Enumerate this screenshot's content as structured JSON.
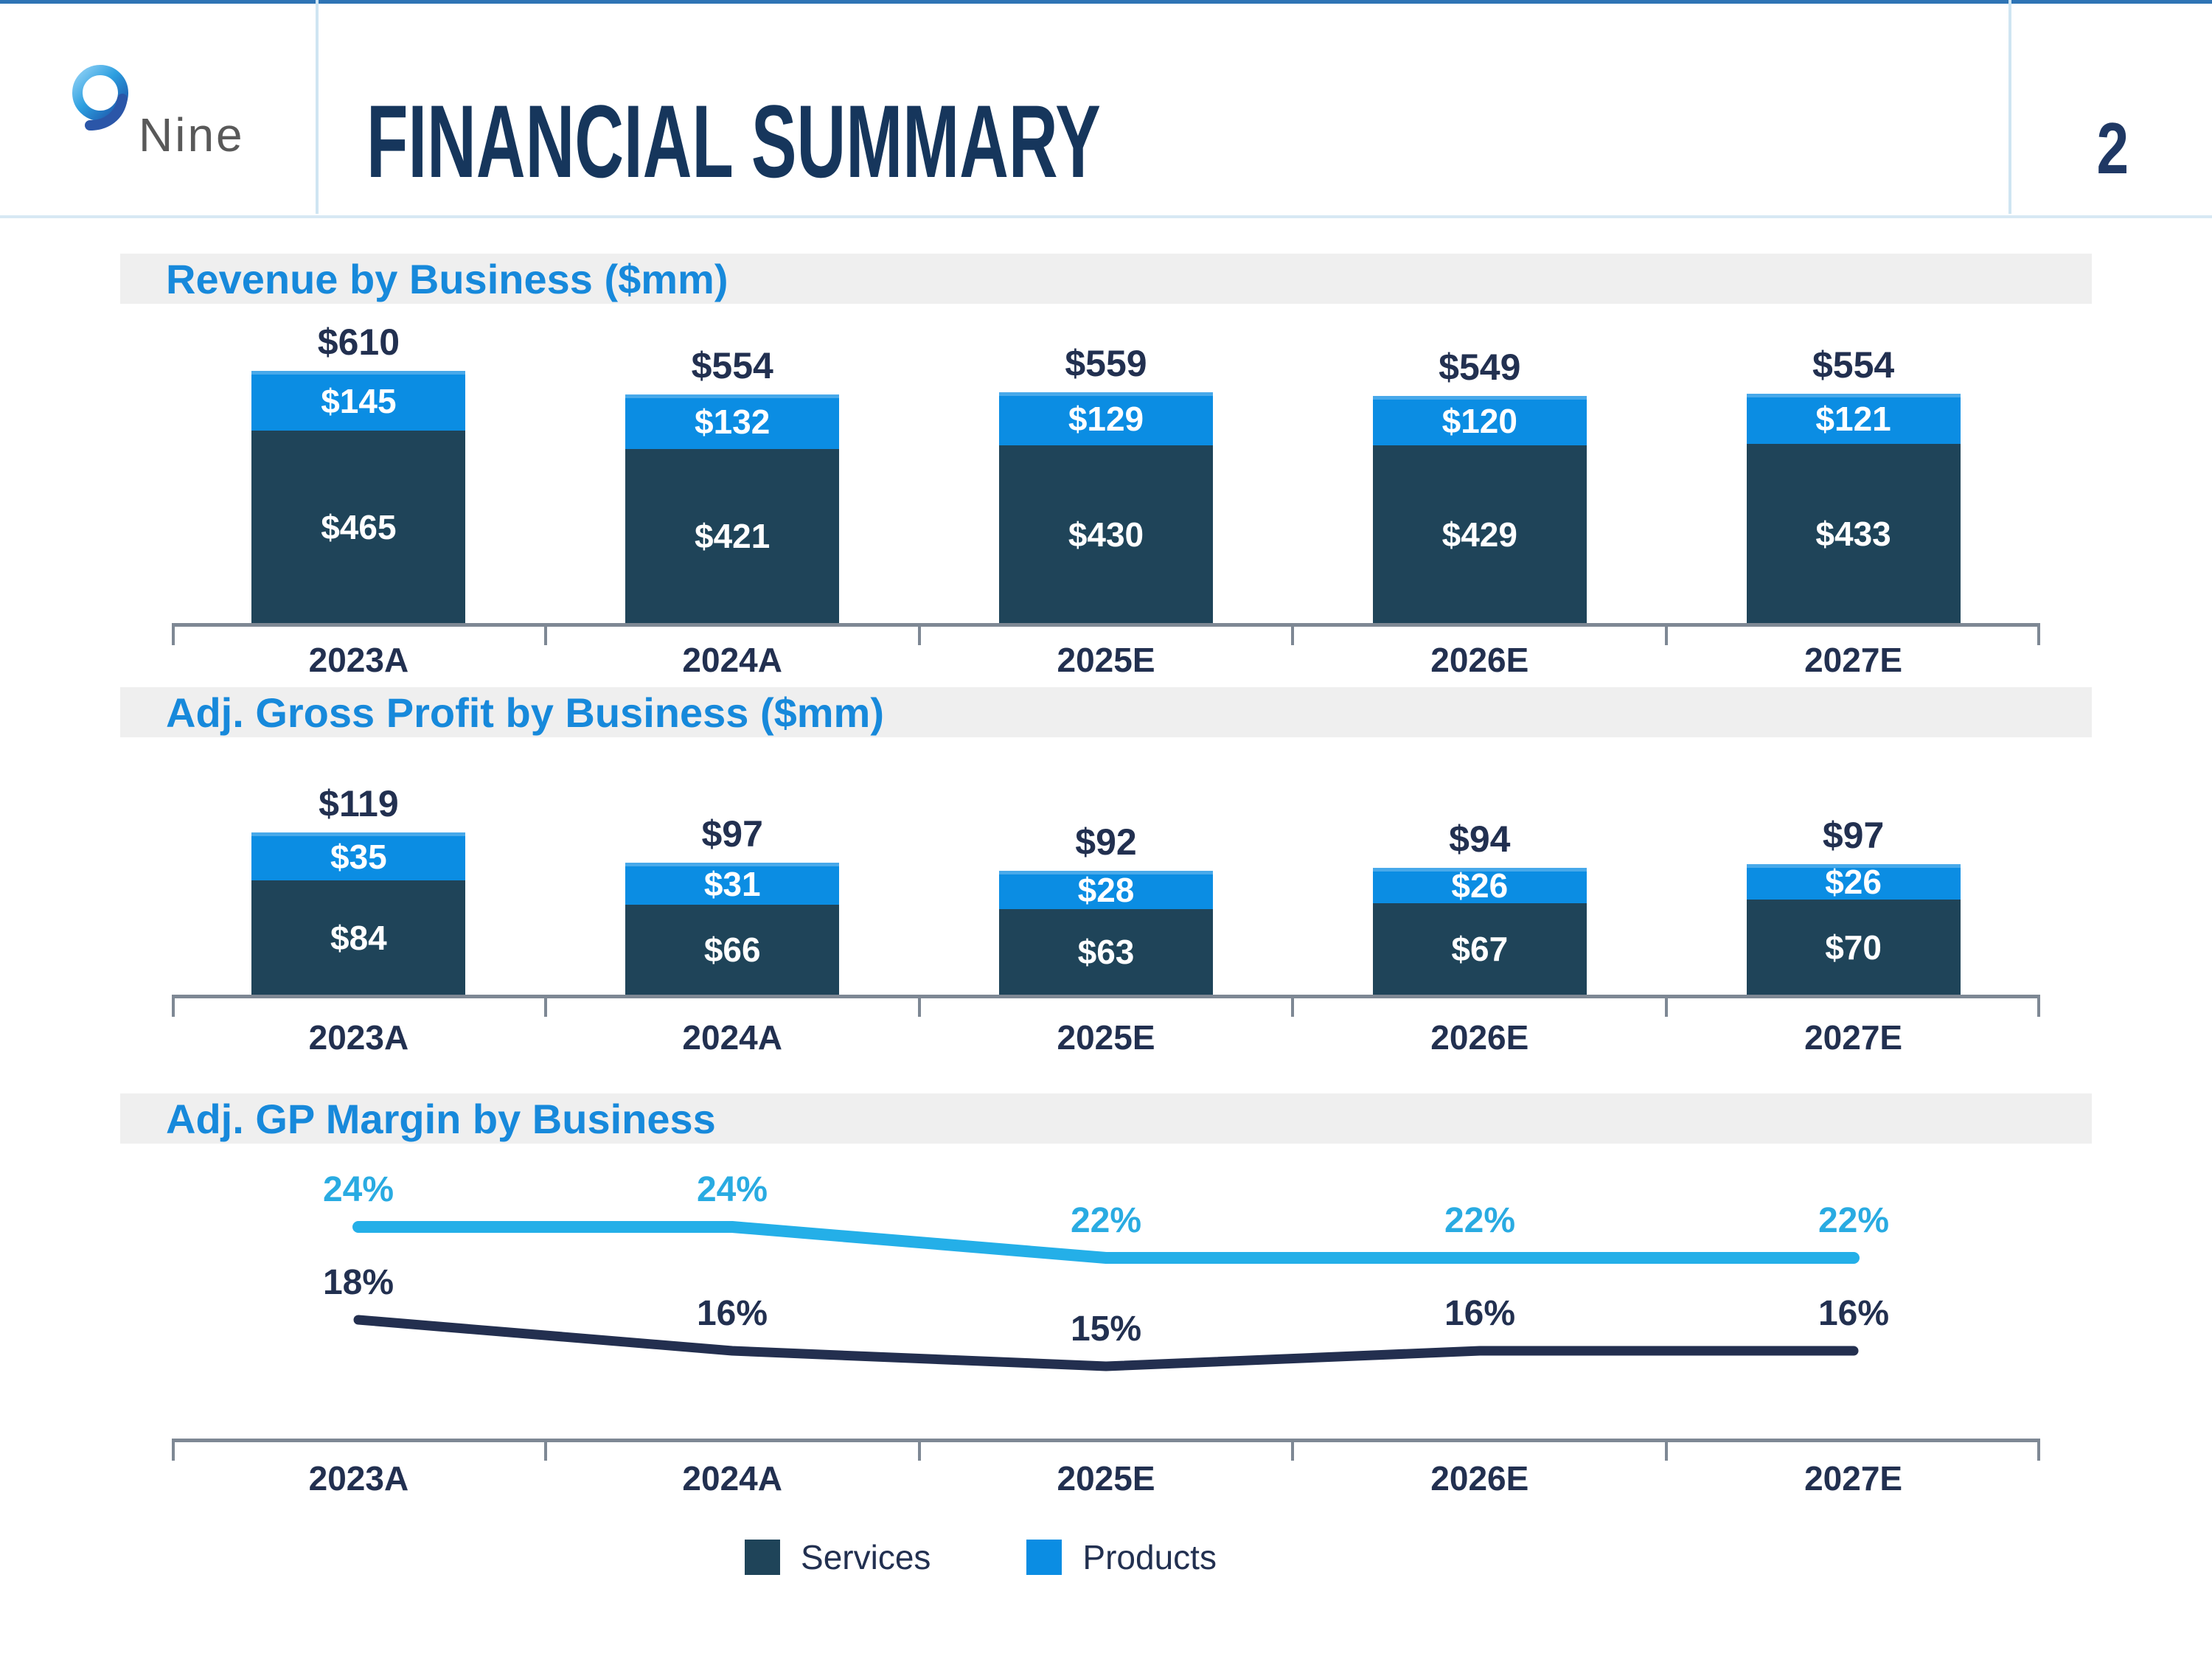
{
  "header": {
    "logo_text": "Nine",
    "title": "FINANCIAL SUMMARY",
    "page_number": "2"
  },
  "colors": {
    "accent_blue": "#1789DB",
    "products_bar": "#0B8DE3",
    "services_bar": "#1F4459",
    "line_products": "#24AFE8",
    "line_products_label": "#29ABE2",
    "line_services": "#232F4F",
    "line_services_label": "#223050",
    "navy_text": "#223050",
    "banner_bg": "#EFEFEF",
    "axis_gray": "#7E8894",
    "header_rule": "#D7E8F4",
    "top_border": "#2E74B5"
  },
  "legend": {
    "items": [
      {
        "label": "Services",
        "color_key": "services_bar"
      },
      {
        "label": "Products",
        "color_key": "products_bar"
      }
    ]
  },
  "chart_data": [
    {
      "type": "bar",
      "title": "Revenue by Business ($mm)",
      "categories": [
        "2023A",
        "2024A",
        "2025E",
        "2026E",
        "2027E"
      ],
      "series": [
        {
          "name": "Services",
          "values": [
            465,
            421,
            430,
            429,
            433
          ]
        },
        {
          "name": "Products",
          "values": [
            145,
            132,
            129,
            120,
            121
          ]
        }
      ],
      "totals": [
        610,
        554,
        559,
        549,
        554
      ],
      "value_prefix": "$",
      "stacked": true,
      "legend_position": "shared-bottom"
    },
    {
      "type": "bar",
      "title": "Adj. Gross Profit by Business ($mm)",
      "categories": [
        "2023A",
        "2024A",
        "2025E",
        "2026E",
        "2027E"
      ],
      "series": [
        {
          "name": "Services",
          "values": [
            84,
            66,
            63,
            67,
            70
          ]
        },
        {
          "name": "Products",
          "values": [
            35,
            31,
            28,
            26,
            26
          ]
        }
      ],
      "totals": [
        119,
        97,
        92,
        94,
        97
      ],
      "value_prefix": "$",
      "stacked": true,
      "legend_position": "shared-bottom"
    },
    {
      "type": "line",
      "title": "Adj. GP Margin by Business",
      "categories": [
        "2023A",
        "2024A",
        "2025E",
        "2026E",
        "2027E"
      ],
      "series": [
        {
          "name": "Products",
          "values": [
            24,
            24,
            22,
            22,
            22
          ]
        },
        {
          "name": "Services",
          "values": [
            18,
            16,
            15,
            16,
            16
          ]
        }
      ],
      "value_suffix": "%",
      "legend_position": "shared-bottom"
    }
  ]
}
